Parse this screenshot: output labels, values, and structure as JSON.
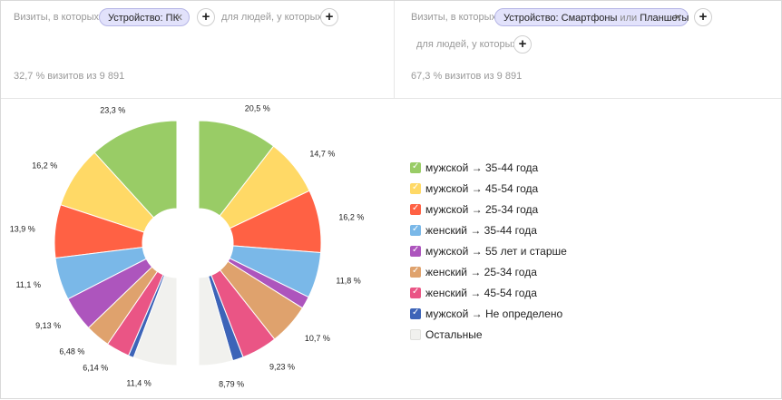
{
  "left_segment": {
    "visits_label": "Визиты, в которых",
    "chip_text": "Устройство: ПК",
    "people_label": "для людей, у которых",
    "summary": "32,7 % визитов из 9 891"
  },
  "right_segment": {
    "visits_label": "Визиты, в которых",
    "chip_prefix": "Устройство: Смартфоны",
    "chip_or": "или",
    "chip_suffix": "Планшеты",
    "people_label": "для людей, у которых",
    "summary": "67,3 % визитов из 9 891"
  },
  "icons": {
    "remove": "✕",
    "add": "+",
    "check": "✓"
  },
  "legend": [
    {
      "label": "мужской → 35-44 года",
      "color": "#99cc66",
      "checked": true
    },
    {
      "label": "мужской → 45-54 года",
      "color": "#ffd966",
      "checked": true
    },
    {
      "label": "мужской → 25-34 года",
      "color": "#ff6144",
      "checked": true
    },
    {
      "label": "женский → 35-44 года",
      "color": "#7ab8e8",
      "checked": true
    },
    {
      "label": "мужской → 55 лет и старше",
      "color": "#ad55bd",
      "checked": true
    },
    {
      "label": "женский → 25-34 года",
      "color": "#dfa26d",
      "checked": true
    },
    {
      "label": "женский → 45-54 года",
      "color": "#ea5585",
      "checked": true
    },
    {
      "label": "мужской → Не определено",
      "color": "#3d64b8",
      "checked": true
    },
    {
      "label": "Остальные",
      "color": "#f1f1ee",
      "checked": false
    }
  ],
  "chart_data": [
    {
      "type": "pie",
      "segment": "Устройство: ПК",
      "side": "left",
      "categories": [
        "мужской → 35-44 года",
        "мужской → 45-54 года",
        "мужской → 25-34 года",
        "женский → 35-44 года",
        "мужской → 55 лет и старше",
        "женский → 25-34 года",
        "женский → 45-54 года",
        "мужской → Не определено",
        "Остальные"
      ],
      "values": [
        23.3,
        16.2,
        13.9,
        11.1,
        9.13,
        6.48,
        6.14,
        1.4,
        11.4
      ],
      "labels": [
        "23,3 %",
        "16,2 %",
        "13,9 %",
        "11,1 %",
        "9,13 %",
        "6,48 %",
        "6,14 %",
        "",
        "11,4 %"
      ]
    },
    {
      "type": "pie",
      "segment": "Устройство: Смартфоны или Планшеты",
      "side": "right",
      "categories": [
        "мужской → 35-44 года",
        "мужской → 45-54 года",
        "мужской → 25-34 года",
        "женский → 35-44 года",
        "мужской → 55 лет и старше",
        "женский → 25-34 года",
        "женский → 45-54 года",
        "мужской → Не определено",
        "Остальные"
      ],
      "values": [
        20.5,
        14.7,
        16.2,
        11.8,
        3.2,
        10.7,
        9.23,
        2.8,
        8.79
      ],
      "labels": [
        "20,5 %",
        "14,7 %",
        "16,2 %",
        "11,8 %",
        "",
        "10,7 %",
        "9,23 %",
        "",
        "8,79 %"
      ]
    }
  ]
}
